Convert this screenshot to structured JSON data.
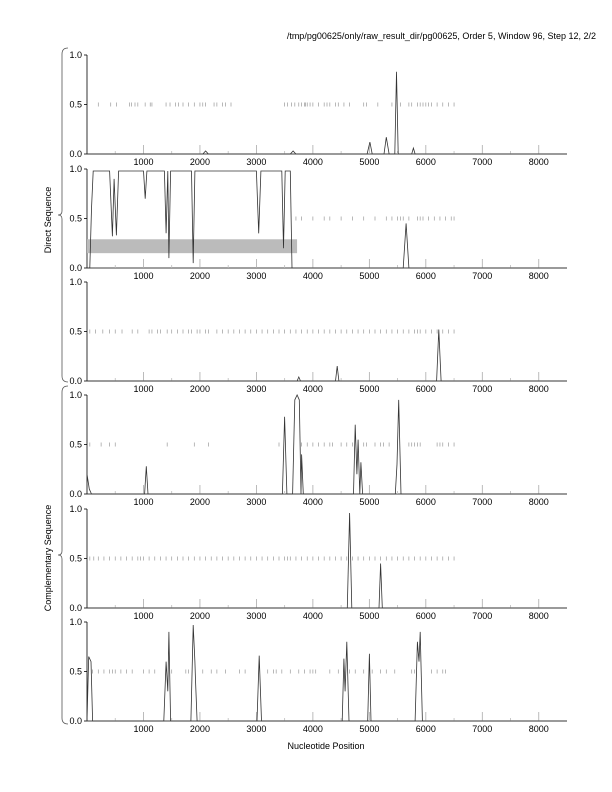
{
  "title": "/tmp/pg00625/only/raw_result_dir/pg00625, Order 5, Window 96, Step 12, 2/2",
  "groups": [
    "Direct Sequence",
    "Complementary Sequence"
  ],
  "chart_data": {
    "type": "line",
    "xlabel": "Nucleotide Position",
    "xlim": [
      0,
      8500
    ],
    "ylim": [
      0,
      1
    ],
    "xticks": [
      1000,
      2000,
      3000,
      4000,
      5000,
      6000,
      7000,
      8000
    ],
    "yticks": [
      "0.0",
      "0.5",
      "1.0"
    ],
    "colors": {
      "line": "#333333",
      "ticks": "#999999",
      "region": "#bbbbbb"
    },
    "panels": [
      {
        "group": "Direct Sequence",
        "points": [
          [
            0,
            0
          ],
          [
            2050,
            0
          ],
          [
            2100,
            0.03
          ],
          [
            2150,
            0
          ],
          [
            3600,
            0
          ],
          [
            3650,
            0.03
          ],
          [
            3700,
            0
          ],
          [
            4960,
            0
          ],
          [
            5010,
            0.12
          ],
          [
            5050,
            0
          ],
          [
            5260,
            0
          ],
          [
            5300,
            0.17
          ],
          [
            5350,
            0
          ],
          [
            5450,
            0
          ],
          [
            5480,
            0.83
          ],
          [
            5510,
            0
          ],
          [
            5750,
            0
          ],
          [
            5780,
            0.06
          ],
          [
            5810,
            0
          ],
          [
            8500,
            0
          ]
        ],
        "orf_ticks": [
          200,
          420,
          520,
          750,
          790,
          850,
          900,
          1030,
          1120,
          1150,
          1400,
          1470,
          1570,
          1620,
          1700,
          1800,
          1900,
          2000,
          2050,
          2100,
          2250,
          2300,
          2400,
          2450,
          2550,
          3500,
          3550,
          3620,
          3680,
          3750,
          3800,
          3850,
          3870,
          3900,
          3950,
          4000,
          4100,
          4200,
          4250,
          4300,
          4400,
          4450,
          4550,
          4650,
          4900,
          4950,
          5150,
          5400,
          5550,
          5700,
          5750,
          5850,
          5900,
          5950,
          6000,
          6050,
          6100,
          6200,
          6300,
          6400,
          6500
        ]
      },
      {
        "group": "Direct Sequence",
        "points": [
          [
            0,
            0
          ],
          [
            50,
            0
          ],
          [
            80,
            0.6
          ],
          [
            110,
            0.98
          ],
          [
            400,
            0.98
          ],
          [
            450,
            0.32
          ],
          [
            480,
            0.9
          ],
          [
            520,
            0.33
          ],
          [
            560,
            0.98
          ],
          [
            1000,
            0.98
          ],
          [
            1030,
            0.7
          ],
          [
            1060,
            0.98
          ],
          [
            1370,
            0.98
          ],
          [
            1400,
            0.35
          ],
          [
            1430,
            0.98
          ],
          [
            1450,
            0.1
          ],
          [
            1480,
            0.98
          ],
          [
            1850,
            0.98
          ],
          [
            1880,
            0.05
          ],
          [
            1910,
            0.98
          ],
          [
            3000,
            0.98
          ],
          [
            3040,
            0.35
          ],
          [
            3080,
            0.98
          ],
          [
            3450,
            0.98
          ],
          [
            3480,
            0.2
          ],
          [
            3510,
            0.98
          ],
          [
            3600,
            0.98
          ],
          [
            3630,
            0.0
          ],
          [
            3660,
            0
          ],
          [
            5600,
            0
          ],
          [
            5650,
            0.45
          ],
          [
            5700,
            0
          ],
          [
            8500,
            0
          ]
        ],
        "region": {
          "start": 0,
          "end": 3720,
          "ymin": 0.15,
          "ymax": 0.29
        },
        "orf_ticks": [
          3700,
          3800,
          4000,
          4200,
          4300,
          4500,
          4700,
          4900,
          5100,
          5300,
          5400,
          5500,
          5550,
          5600,
          5700,
          5850,
          5900,
          5950,
          6050,
          6150,
          6250,
          6350,
          6450,
          6500
        ]
      },
      {
        "group": "Direct Sequence",
        "points": [
          [
            0,
            0
          ],
          [
            3720,
            0
          ],
          [
            3750,
            0.04
          ],
          [
            3780,
            0
          ],
          [
            4400,
            0
          ],
          [
            4430,
            0.15
          ],
          [
            4460,
            0
          ],
          [
            6190,
            0
          ],
          [
            6230,
            0.52
          ],
          [
            6270,
            0
          ],
          [
            8500,
            0
          ]
        ],
        "orf_ticks": [
          50,
          150,
          280,
          400,
          500,
          620,
          800,
          900,
          1100,
          1150,
          1250,
          1300,
          1420,
          1500,
          1600,
          1700,
          1800,
          1850,
          1950,
          2000,
          2100,
          2150,
          2300,
          2400,
          2500,
          2600,
          2700,
          2800,
          2900,
          3000,
          3100,
          3200,
          3300,
          3400,
          3500,
          3600,
          3700,
          3800,
          3900,
          4000,
          4100,
          4200,
          4300,
          4400,
          4500,
          4600,
          4700,
          4800,
          4900,
          5000,
          5100,
          5200,
          5300,
          5400,
          5500,
          5600,
          5700,
          5800,
          5850,
          5900,
          6000,
          6100,
          6200,
          6300,
          6400,
          6500
        ]
      },
      {
        "group": "Complementary Sequence",
        "points": [
          [
            0,
            0.2
          ],
          [
            40,
            0.05
          ],
          [
            80,
            0
          ],
          [
            1020,
            0
          ],
          [
            1050,
            0.28
          ],
          [
            1080,
            0
          ],
          [
            3460,
            0
          ],
          [
            3500,
            0.78
          ],
          [
            3540,
            0
          ],
          [
            3640,
            0
          ],
          [
            3680,
            0.95
          ],
          [
            3720,
            1.0
          ],
          [
            3760,
            0.95
          ],
          [
            3790,
            0
          ],
          [
            3800,
            0.4
          ],
          [
            3830,
            0
          ],
          [
            4720,
            0
          ],
          [
            4750,
            0.7
          ],
          [
            4780,
            0.2
          ],
          [
            4800,
            0.55
          ],
          [
            4830,
            0
          ],
          [
            4850,
            0.32
          ],
          [
            4880,
            0
          ],
          [
            5460,
            0
          ],
          [
            5490,
            0.3
          ],
          [
            5520,
            0.95
          ],
          [
            5560,
            0
          ],
          [
            8500,
            0
          ]
        ],
        "orf_ticks": [
          50,
          250,
          400,
          500,
          1420,
          1900,
          2150,
          3400,
          3800,
          3900,
          4000,
          4100,
          4200,
          4300,
          4350,
          4500,
          4600,
          4700,
          4900,
          4950,
          5100,
          5200,
          5250,
          5350,
          5700,
          5750,
          5800,
          5850,
          5900,
          6200,
          6250,
          6300,
          6400,
          6500
        ]
      },
      {
        "group": "Complementary Sequence",
        "points": [
          [
            0,
            0
          ],
          [
            4610,
            0
          ],
          [
            4650,
            0.96
          ],
          [
            4690,
            0
          ],
          [
            5170,
            0
          ],
          [
            5200,
            0.45
          ],
          [
            5230,
            0
          ],
          [
            8500,
            0
          ]
        ],
        "orf_ticks": [
          50,
          120,
          200,
          300,
          400,
          500,
          600,
          700,
          800,
          900,
          950,
          1000,
          1100,
          1200,
          1300,
          1400,
          1500,
          1600,
          1700,
          1800,
          1900,
          2000,
          2100,
          2200,
          2300,
          2400,
          2500,
          2600,
          2700,
          2800,
          2900,
          3000,
          3100,
          3200,
          3300,
          3400,
          3500,
          3550,
          3600,
          3700,
          3800,
          3900,
          4000,
          4100,
          4200,
          4300,
          4400,
          4500,
          4600,
          4700,
          4800,
          4900,
          5000,
          5100,
          5200,
          5300,
          5400,
          5500,
          5600,
          5700,
          5800,
          5900,
          6000,
          6100,
          6200,
          6300,
          6400,
          6500
        ]
      },
      {
        "group": "Complementary Sequence",
        "points": [
          [
            0,
            0
          ],
          [
            30,
            0.65
          ],
          [
            70,
            0.6
          ],
          [
            100,
            0
          ],
          [
            1360,
            0
          ],
          [
            1400,
            0.6
          ],
          [
            1430,
            0.3
          ],
          [
            1450,
            0.9
          ],
          [
            1480,
            0
          ],
          [
            1840,
            0
          ],
          [
            1880,
            0.97
          ],
          [
            1910,
            0.6
          ],
          [
            1920,
            0.44
          ],
          [
            1950,
            0
          ],
          [
            3010,
            0
          ],
          [
            3050,
            0.66
          ],
          [
            3090,
            0
          ],
          [
            4520,
            0
          ],
          [
            4550,
            0.63
          ],
          [
            4570,
            0.3
          ],
          [
            4600,
            0.8
          ],
          [
            4640,
            0
          ],
          [
            4970,
            0
          ],
          [
            5000,
            0.68
          ],
          [
            5030,
            0
          ],
          [
            5810,
            0
          ],
          [
            5850,
            0.8
          ],
          [
            5880,
            0.6
          ],
          [
            5900,
            0.9
          ],
          [
            5940,
            0
          ],
          [
            8500,
            0
          ]
        ],
        "orf_ticks": [
          100,
          200,
          300,
          400,
          450,
          500,
          600,
          700,
          800,
          1000,
          1100,
          1200,
          1500,
          1750,
          1800,
          2050,
          2200,
          2300,
          2450,
          2700,
          2800,
          3200,
          3300,
          3350,
          3450,
          3600,
          3750,
          3850,
          3950,
          4000,
          4050,
          4300,
          4450,
          4650,
          4750,
          4900,
          5050,
          5200,
          5300,
          5450,
          5750,
          5800,
          6100,
          6200,
          6300,
          6350
        ]
      }
    ]
  }
}
